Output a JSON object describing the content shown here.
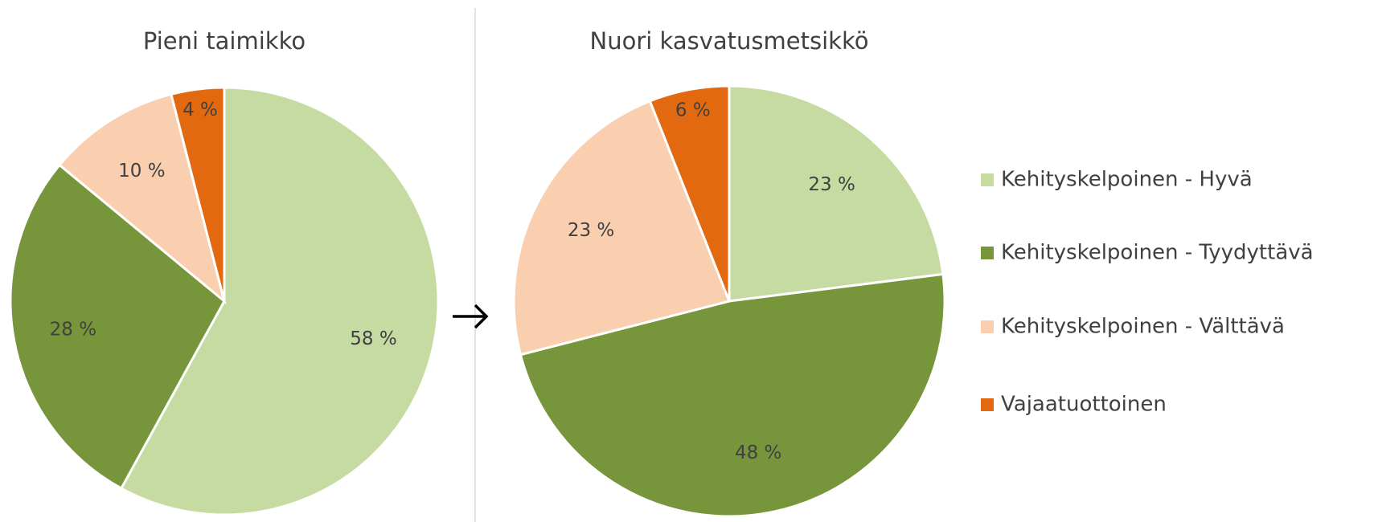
{
  "chart_data": [
    {
      "type": "pie",
      "title": "Pieni taimikko",
      "categories": [
        "Kehityskelpoinen - Hyvä",
        "Kehityskelpoinen - Tyydyttävä",
        "Kehityskelpoinen - Välttävä",
        "Vajaatuottoinen"
      ],
      "values": [
        58,
        28,
        10,
        4
      ],
      "value_labels": [
        "58 %",
        "28 %",
        "10 %",
        "4 %"
      ],
      "colors": [
        "#c5dba1",
        "#77963b",
        "#f9cfb0",
        "#e2690f"
      ]
    },
    {
      "type": "pie",
      "title": "Nuori kasvatusmetsikkö",
      "categories": [
        "Kehityskelpoinen - Hyvä",
        "Kehityskelpoinen - Tyydyttävä",
        "Kehityskelpoinen - Välttävä",
        "Vajaatuottoinen"
      ],
      "values": [
        23,
        48,
        23,
        6
      ],
      "value_labels": [
        "23 %",
        "48 %",
        "23 %",
        "6 %"
      ],
      "colors": [
        "#c5dba1",
        "#77963b",
        "#f9cfb0",
        "#e2690f"
      ]
    }
  ]
}
